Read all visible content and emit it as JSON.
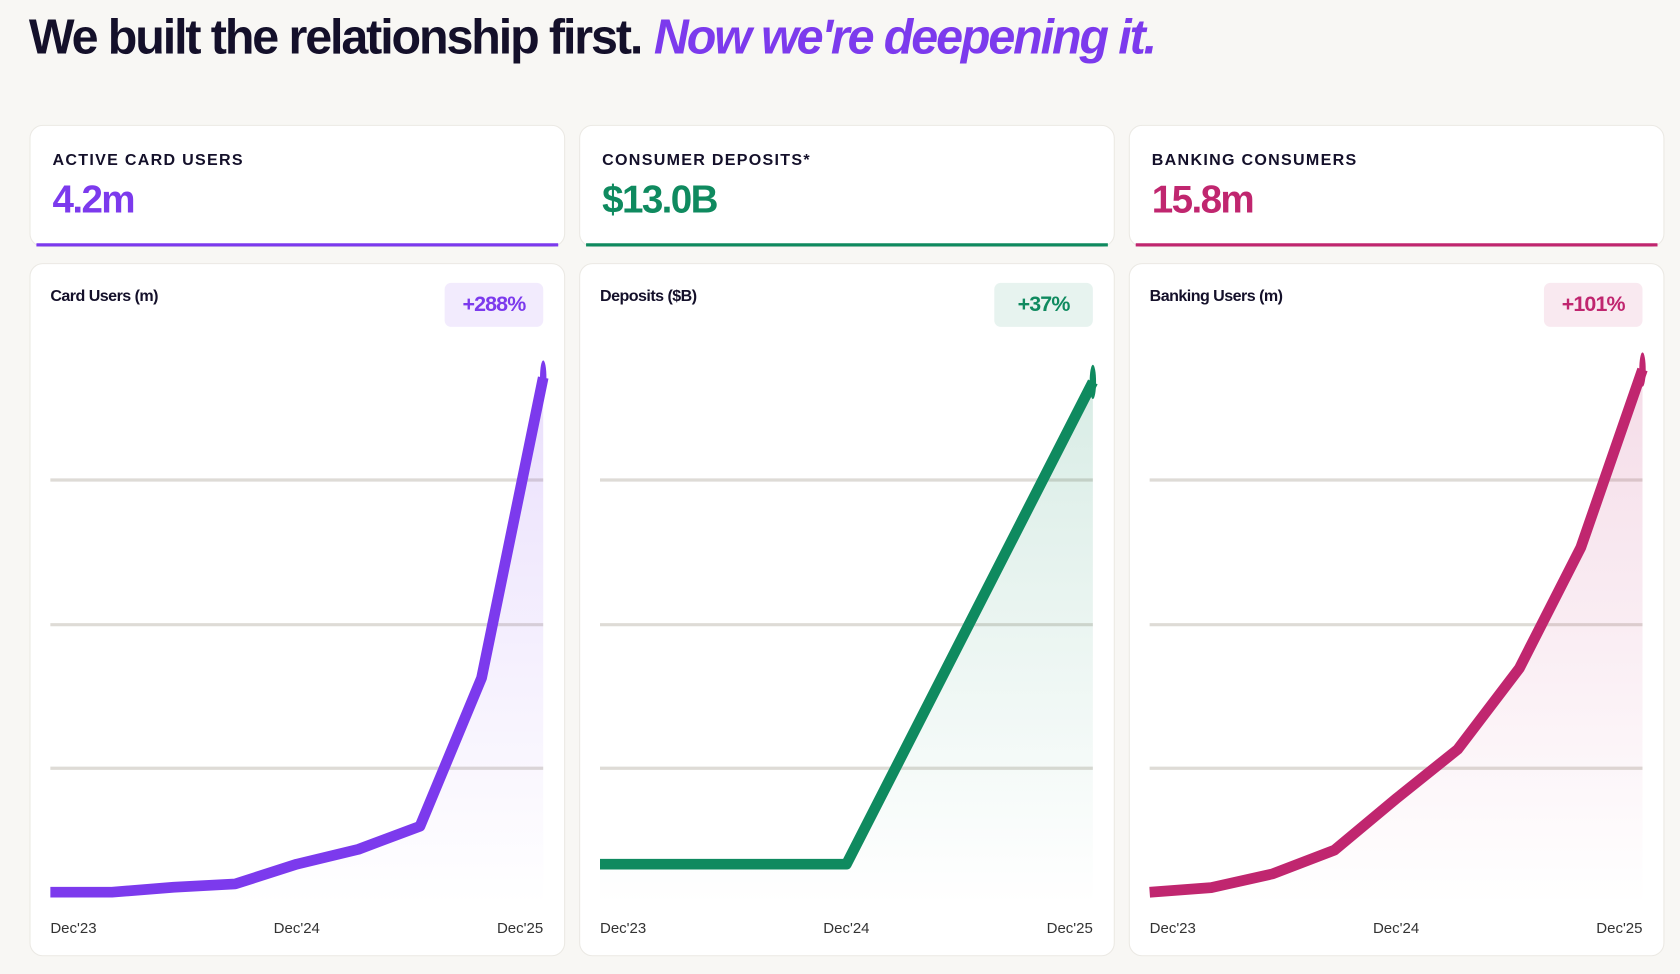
{
  "header": {
    "title": "We built the relationship first.",
    "title_accent": "Now we're deepening it."
  },
  "cards": [
    {
      "label": "ACTIVE CARD USERS",
      "value": "4.2m",
      "color": "#7c3aed"
    },
    {
      "label": "CONSUMER DEPOSITS*",
      "value": "$13.0B",
      "color": "#0f8a5f"
    },
    {
      "label": "BANKING CONSUMERS",
      "value": "15.8m",
      "color": "#c0266f"
    }
  ],
  "chart_data": [
    {
      "type": "line",
      "title": "Card Users (m)",
      "badge": "+288%",
      "categories": [
        "Dec'23",
        null,
        null,
        null,
        "Dec'24",
        null,
        null,
        null,
        "Dec'25"
      ],
      "series": [
        {
          "color": "#7c3aed",
          "values": [
            1.08,
            1.08,
            1.11,
            1.13,
            1.25,
            1.34,
            1.48,
            2.38,
            4.2
          ]
        }
      ],
      "ylim": [
        1.0,
        4.54
      ]
    },
    {
      "type": "line",
      "title": "Deposits ($B)",
      "badge": "+37%",
      "categories": [
        "Dec'23",
        "Dec'24",
        "Dec'25"
      ],
      "series": [
        {
          "color": "#0f8a5f",
          "values": [
            9.49,
            9.49,
            13.0
          ]
        }
      ],
      "ylim": [
        9.19,
        13.44
      ]
    },
    {
      "type": "line",
      "title": "Banking Users (m)",
      "badge": "+101%",
      "categories": [
        "Dec'23",
        null,
        null,
        null,
        "Dec'24",
        null,
        null,
        null,
        "Dec'25"
      ],
      "series": [
        {
          "color": "#c0266f",
          "values": [
            7.86,
            7.93,
            8.14,
            8.5,
            9.28,
            10.03,
            11.26,
            13.1,
            15.8
          ]
        }
      ],
      "ylim": [
        7.66,
        16.53
      ]
    }
  ]
}
